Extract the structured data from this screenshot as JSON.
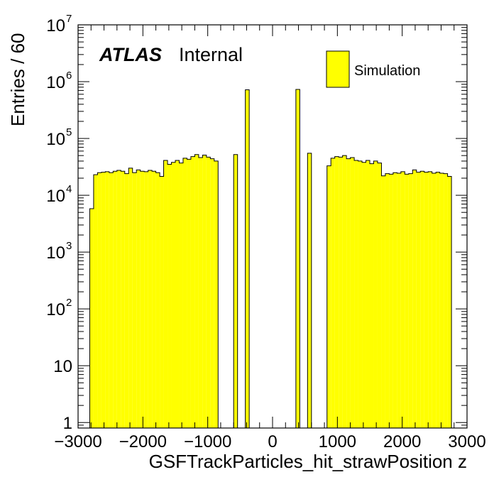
{
  "chart_data": {
    "type": "bar",
    "subtype": "histogram",
    "xlabel": "GSFTrackParticles_hit_strawPosition z",
    "ylabel": "Entries / 60",
    "xlim": [
      -3000,
      3000
    ],
    "ylim": [
      0.8,
      10000000
    ],
    "ylog": true,
    "bin_width": 60,
    "x_ticks": [
      -3000,
      -2000,
      -1000,
      0,
      1000,
      2000,
      3000
    ],
    "x_tick_labels": [
      "−3000",
      "−2000",
      "−1000",
      "0",
      "1000",
      "2000",
      "3000"
    ],
    "y_ticks": [
      {
        "value": 1,
        "base": "1",
        "exp": ""
      },
      {
        "value": 10,
        "base": "10",
        "exp": ""
      },
      {
        "value": 100,
        "base": "10",
        "exp": "2"
      },
      {
        "value": 1000,
        "base": "10",
        "exp": "3"
      },
      {
        "value": 10000,
        "base": "10",
        "exp": "4"
      },
      {
        "value": 100000,
        "base": "10",
        "exp": "5"
      },
      {
        "value": 1000000,
        "base": "10",
        "exp": "6"
      },
      {
        "value": 10000000,
        "base": "10",
        "exp": "7"
      }
    ],
    "fill_color": "#ffff00",
    "line_color": "#000000",
    "legend": {
      "position": "top-right",
      "entries": [
        "Simulation"
      ]
    },
    "annotation": {
      "bold": "ATLAS",
      "text": "Internal"
    },
    "bins": [
      {
        "x0": -2820,
        "v": 5800
      },
      {
        "x0": -2760,
        "v": 23000
      },
      {
        "x0": -2700,
        "v": 25000
      },
      {
        "x0": -2640,
        "v": 25500
      },
      {
        "x0": -2580,
        "v": 26000
      },
      {
        "x0": -2520,
        "v": 25000
      },
      {
        "x0": -2460,
        "v": 26500
      },
      {
        "x0": -2400,
        "v": 27500
      },
      {
        "x0": -2340,
        "v": 26500
      },
      {
        "x0": -2280,
        "v": 24000
      },
      {
        "x0": -2220,
        "v": 30000
      },
      {
        "x0": -2160,
        "v": 25000
      },
      {
        "x0": -2100,
        "v": 28000
      },
      {
        "x0": -2040,
        "v": 26500
      },
      {
        "x0": -1980,
        "v": 26000
      },
      {
        "x0": -1920,
        "v": 27500
      },
      {
        "x0": -1860,
        "v": 26500
      },
      {
        "x0": -1800,
        "v": 25000
      },
      {
        "x0": -1740,
        "v": 21500
      },
      {
        "x0": -1680,
        "v": 41000
      },
      {
        "x0": -1620,
        "v": 35000
      },
      {
        "x0": -1560,
        "v": 38000
      },
      {
        "x0": -1500,
        "v": 41000
      },
      {
        "x0": -1440,
        "v": 37000
      },
      {
        "x0": -1380,
        "v": 45000
      },
      {
        "x0": -1320,
        "v": 43000
      },
      {
        "x0": -1260,
        "v": 48000
      },
      {
        "x0": -1200,
        "v": 52000
      },
      {
        "x0": -1140,
        "v": 46000
      },
      {
        "x0": -1080,
        "v": 51000
      },
      {
        "x0": -1020,
        "v": 47000
      },
      {
        "x0": -960,
        "v": 44000
      },
      {
        "x0": -900,
        "v": 40000
      },
      {
        "x0": -600,
        "v": 52000
      },
      {
        "x0": -420,
        "v": 720000
      },
      {
        "x0": 360,
        "v": 730000
      },
      {
        "x0": 540,
        "v": 55000
      },
      {
        "x0": 840,
        "v": 33000
      },
      {
        "x0": 900,
        "v": 45000
      },
      {
        "x0": 960,
        "v": 48000
      },
      {
        "x0": 1020,
        "v": 47000
      },
      {
        "x0": 1080,
        "v": 50000
      },
      {
        "x0": 1140,
        "v": 44000
      },
      {
        "x0": 1200,
        "v": 46000
      },
      {
        "x0": 1260,
        "v": 41000
      },
      {
        "x0": 1320,
        "v": 40000
      },
      {
        "x0": 1380,
        "v": 38000
      },
      {
        "x0": 1440,
        "v": 41000
      },
      {
        "x0": 1500,
        "v": 36000
      },
      {
        "x0": 1560,
        "v": 40000
      },
      {
        "x0": 1620,
        "v": 37000
      },
      {
        "x0": 1680,
        "v": 22000
      },
      {
        "x0": 1740,
        "v": 24000
      },
      {
        "x0": 1800,
        "v": 23500
      },
      {
        "x0": 1860,
        "v": 25000
      },
      {
        "x0": 1920,
        "v": 24500
      },
      {
        "x0": 1980,
        "v": 26000
      },
      {
        "x0": 2040,
        "v": 23500
      },
      {
        "x0": 2100,
        "v": 24000
      },
      {
        "x0": 2160,
        "v": 28000
      },
      {
        "x0": 2220,
        "v": 25500
      },
      {
        "x0": 2280,
        "v": 26500
      },
      {
        "x0": 2340,
        "v": 25500
      },
      {
        "x0": 2400,
        "v": 26000
      },
      {
        "x0": 2460,
        "v": 24500
      },
      {
        "x0": 2520,
        "v": 25500
      },
      {
        "x0": 2580,
        "v": 24500
      },
      {
        "x0": 2640,
        "v": 24000
      },
      {
        "x0": 2700,
        "v": 21500
      },
      {
        "x0": 2760,
        "v": 0
      }
    ]
  }
}
